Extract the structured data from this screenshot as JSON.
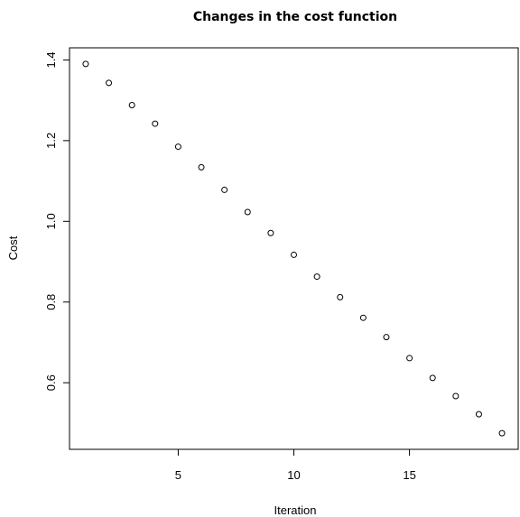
{
  "chart_data": {
    "type": "scatter",
    "title": "Changes in the cost function",
    "xlabel": "Iteration",
    "ylabel": "Cost",
    "xlim": [
      0.3,
      19.7
    ],
    "ylim": [
      0.435,
      1.43
    ],
    "xticks": [
      5,
      10,
      15
    ],
    "xtick_labels": [
      "5",
      "10",
      "15"
    ],
    "yticks": [
      0.6,
      0.8,
      1.0,
      1.2,
      1.4
    ],
    "ytick_labels": [
      "0.6",
      "0.8",
      "1.0",
      "1.2",
      "1.4"
    ],
    "grid": false,
    "legend": "none",
    "marker": "open-circle",
    "x": [
      1,
      2,
      3,
      4,
      5,
      6,
      7,
      8,
      9,
      10,
      11,
      12,
      13,
      14,
      15,
      16,
      17,
      18,
      19
    ],
    "y": [
      1.39,
      1.343,
      1.288,
      1.242,
      1.185,
      1.134,
      1.078,
      1.023,
      0.971,
      0.917,
      0.863,
      0.812,
      0.761,
      0.713,
      0.661,
      0.612,
      0.567,
      0.522,
      0.475
    ],
    "colors": {
      "points": "#000000",
      "axes": "#000000"
    }
  }
}
